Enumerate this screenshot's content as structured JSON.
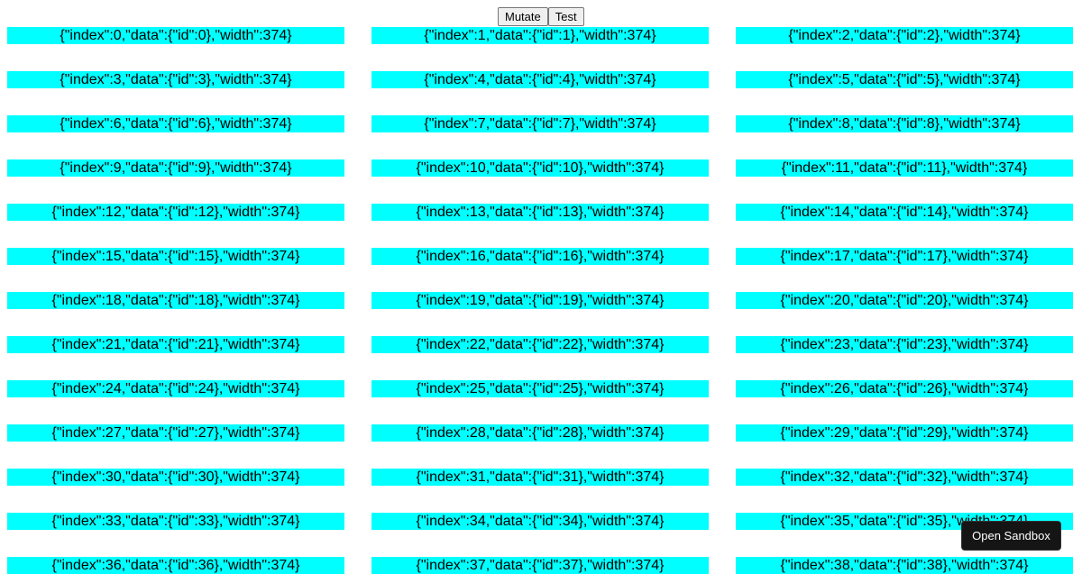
{
  "toolbar": {
    "mutate_label": "Mutate",
    "test_label": "Test"
  },
  "items": [
    "{\"index\":0,\"data\":{\"id\":0},\"width\":374}",
    "{\"index\":1,\"data\":{\"id\":1},\"width\":374}",
    "{\"index\":2,\"data\":{\"id\":2},\"width\":374}",
    "{\"index\":3,\"data\":{\"id\":3},\"width\":374}",
    "{\"index\":4,\"data\":{\"id\":4},\"width\":374}",
    "{\"index\":5,\"data\":{\"id\":5},\"width\":374}",
    "{\"index\":6,\"data\":{\"id\":6},\"width\":374}",
    "{\"index\":7,\"data\":{\"id\":7},\"width\":374}",
    "{\"index\":8,\"data\":{\"id\":8},\"width\":374}",
    "{\"index\":9,\"data\":{\"id\":9},\"width\":374}",
    "{\"index\":10,\"data\":{\"id\":10},\"width\":374}",
    "{\"index\":11,\"data\":{\"id\":11},\"width\":374}",
    "{\"index\":12,\"data\":{\"id\":12},\"width\":374}",
    "{\"index\":13,\"data\":{\"id\":13},\"width\":374}",
    "{\"index\":14,\"data\":{\"id\":14},\"width\":374}",
    "{\"index\":15,\"data\":{\"id\":15},\"width\":374}",
    "{\"index\":16,\"data\":{\"id\":16},\"width\":374}",
    "{\"index\":17,\"data\":{\"id\":17},\"width\":374}",
    "{\"index\":18,\"data\":{\"id\":18},\"width\":374}",
    "{\"index\":19,\"data\":{\"id\":19},\"width\":374}",
    "{\"index\":20,\"data\":{\"id\":20},\"width\":374}",
    "{\"index\":21,\"data\":{\"id\":21},\"width\":374}",
    "{\"index\":22,\"data\":{\"id\":22},\"width\":374}",
    "{\"index\":23,\"data\":{\"id\":23},\"width\":374}",
    "{\"index\":24,\"data\":{\"id\":24},\"width\":374}",
    "{\"index\":25,\"data\":{\"id\":25},\"width\":374}",
    "{\"index\":26,\"data\":{\"id\":26},\"width\":374}",
    "{\"index\":27,\"data\":{\"id\":27},\"width\":374}",
    "{\"index\":28,\"data\":{\"id\":28},\"width\":374}",
    "{\"index\":29,\"data\":{\"id\":29},\"width\":374}",
    "{\"index\":30,\"data\":{\"id\":30},\"width\":374}",
    "{\"index\":31,\"data\":{\"id\":31},\"width\":374}",
    "{\"index\":32,\"data\":{\"id\":32},\"width\":374}",
    "{\"index\":33,\"data\":{\"id\":33},\"width\":374}",
    "{\"index\":34,\"data\":{\"id\":34},\"width\":374}",
    "{\"index\":35,\"data\":{\"id\":35},\"width\":374}",
    "{\"index\":36,\"data\":{\"id\":36},\"width\":374}",
    "{\"index\":37,\"data\":{\"id\":37},\"width\":374}",
    "{\"index\":38,\"data\":{\"id\":38},\"width\":374}"
  ],
  "sandbox": {
    "label": "Open Sandbox"
  },
  "colors": {
    "cell_background": "#00ffff",
    "sandbox_background": "#151515"
  }
}
